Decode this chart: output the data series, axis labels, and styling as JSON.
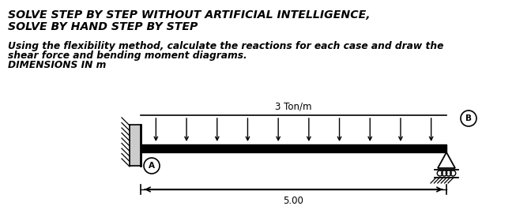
{
  "title_line1": "SOLVE STEP BY STEP WITHOUT ARTIFICIAL INTELLIGENCE,",
  "title_line2": "SOLVE BY HAND STEP BY STEP",
  "sub_line1": "Using the flexibility method, calculate the reactions for each case and draw the",
  "sub_line2": "shear force and bending moment diagrams.",
  "sub_line3": "DIMENSIONS IN m",
  "load_label": "3 Ton/m",
  "dimension_label": "5.00",
  "node_A_label": "A",
  "node_B_label": "B",
  "fig_width": 6.72,
  "fig_height": 2.61,
  "bg_color": "#ffffff",
  "text_color": "#000000"
}
